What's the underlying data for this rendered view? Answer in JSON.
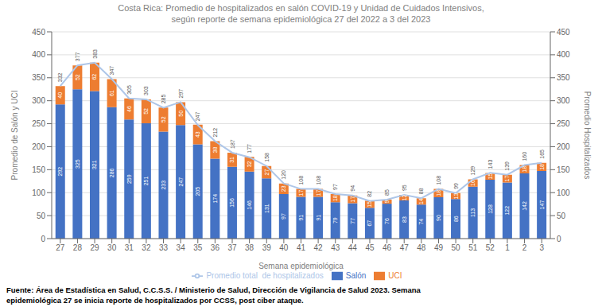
{
  "chart_data": {
    "type": "bar",
    "stacked": true,
    "title": "Costa Rica: Promedio de hospitalizados en salón COVID-19 y Unidad de Cuidados Intensivos,",
    "subtitle": "según reporte de semana epidemiológica 27 del 2022 a 3 del 2023",
    "xlabel": "Semana epidemiológica",
    "ylabel": "Promedio de Salón y UCI",
    "y2label": "Promedio Hospitalizados",
    "categories": [
      "27",
      "28",
      "29",
      "30",
      "31",
      "32",
      "33",
      "34",
      "35",
      "36",
      "37",
      "38",
      "39",
      "40",
      "41",
      "42",
      "43",
      "44",
      "45",
      "46",
      "47",
      "48",
      "49",
      "50",
      "51",
      "52",
      "1",
      "2",
      "3"
    ],
    "series": [
      {
        "name": "Salón",
        "color": "#4472c4",
        "values": [
          292,
          325,
          321,
          286,
          259,
          251,
          233,
          247,
          205,
          174,
          156,
          146,
          131,
          97,
          91,
          91,
          79,
          77,
          67,
          76,
          83,
          74,
          90,
          86,
          113,
          128,
          122,
          142,
          147
        ]
      },
      {
        "name": "UCI",
        "color": "#ed7d31",
        "values": [
          40,
          52,
          62,
          61,
          46,
          52,
          52,
          50,
          43,
          38,
          31,
          32,
          27,
          23,
          17,
          17,
          18,
          17,
          15,
          9,
          12,
          14,
          18,
          13,
          16,
          15,
          17,
          18,
          18
        ]
      },
      {
        "name": "Promedio total  de hospitalizados",
        "type": "line",
        "axis": "y2",
        "color": "#aec6e8",
        "values": [
          332,
          377,
          383,
          347,
          305,
          303,
          285,
          297,
          247,
          212,
          187,
          177,
          158,
          120,
          108,
          108,
          97,
          94,
          82,
          85,
          95,
          88,
          108,
          99,
          129,
          143,
          139,
          160,
          165
        ]
      }
    ],
    "ylim": [
      0,
      450
    ],
    "yticks": [
      0,
      50,
      100,
      150,
      200,
      250,
      300,
      350,
      400,
      450
    ],
    "y2lim": [
      0,
      450
    ],
    "y2ticks": [
      0,
      50,
      100,
      150,
      200,
      250,
      300,
      350,
      400,
      450
    ],
    "grid": true,
    "legend": "bottom",
    "data_labels": true,
    "annotations": [
      "Fuente: Área de Estadística en Salud, C.C.S.S. / Ministerio de Salud, Dirección de Vigilancia de Salud 2023. Semana",
      "epidemiológica 27 se inicia reporte de hospitalizados por CCSS, post ciber ataque."
    ]
  }
}
